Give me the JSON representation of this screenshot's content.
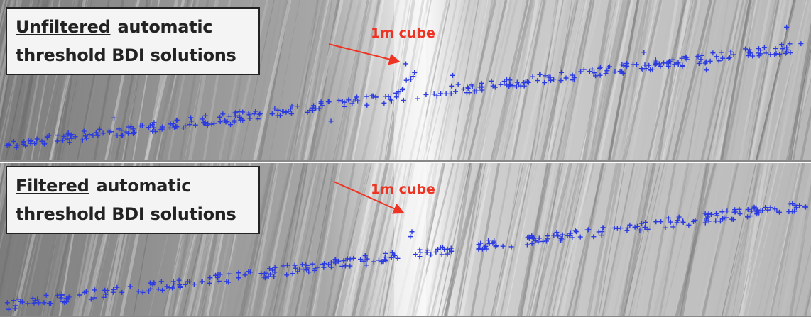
{
  "panels": [
    {
      "label_emphasis": "Unfiltered",
      "label_rest": "automatic",
      "label_line2": "threshold BDI solutions",
      "annotation": "1m cube"
    },
    {
      "label_emphasis": "Filtered",
      "label_rest": "automatic",
      "label_line2": "threshold BDI solutions",
      "annotation": "1m cube"
    }
  ]
}
